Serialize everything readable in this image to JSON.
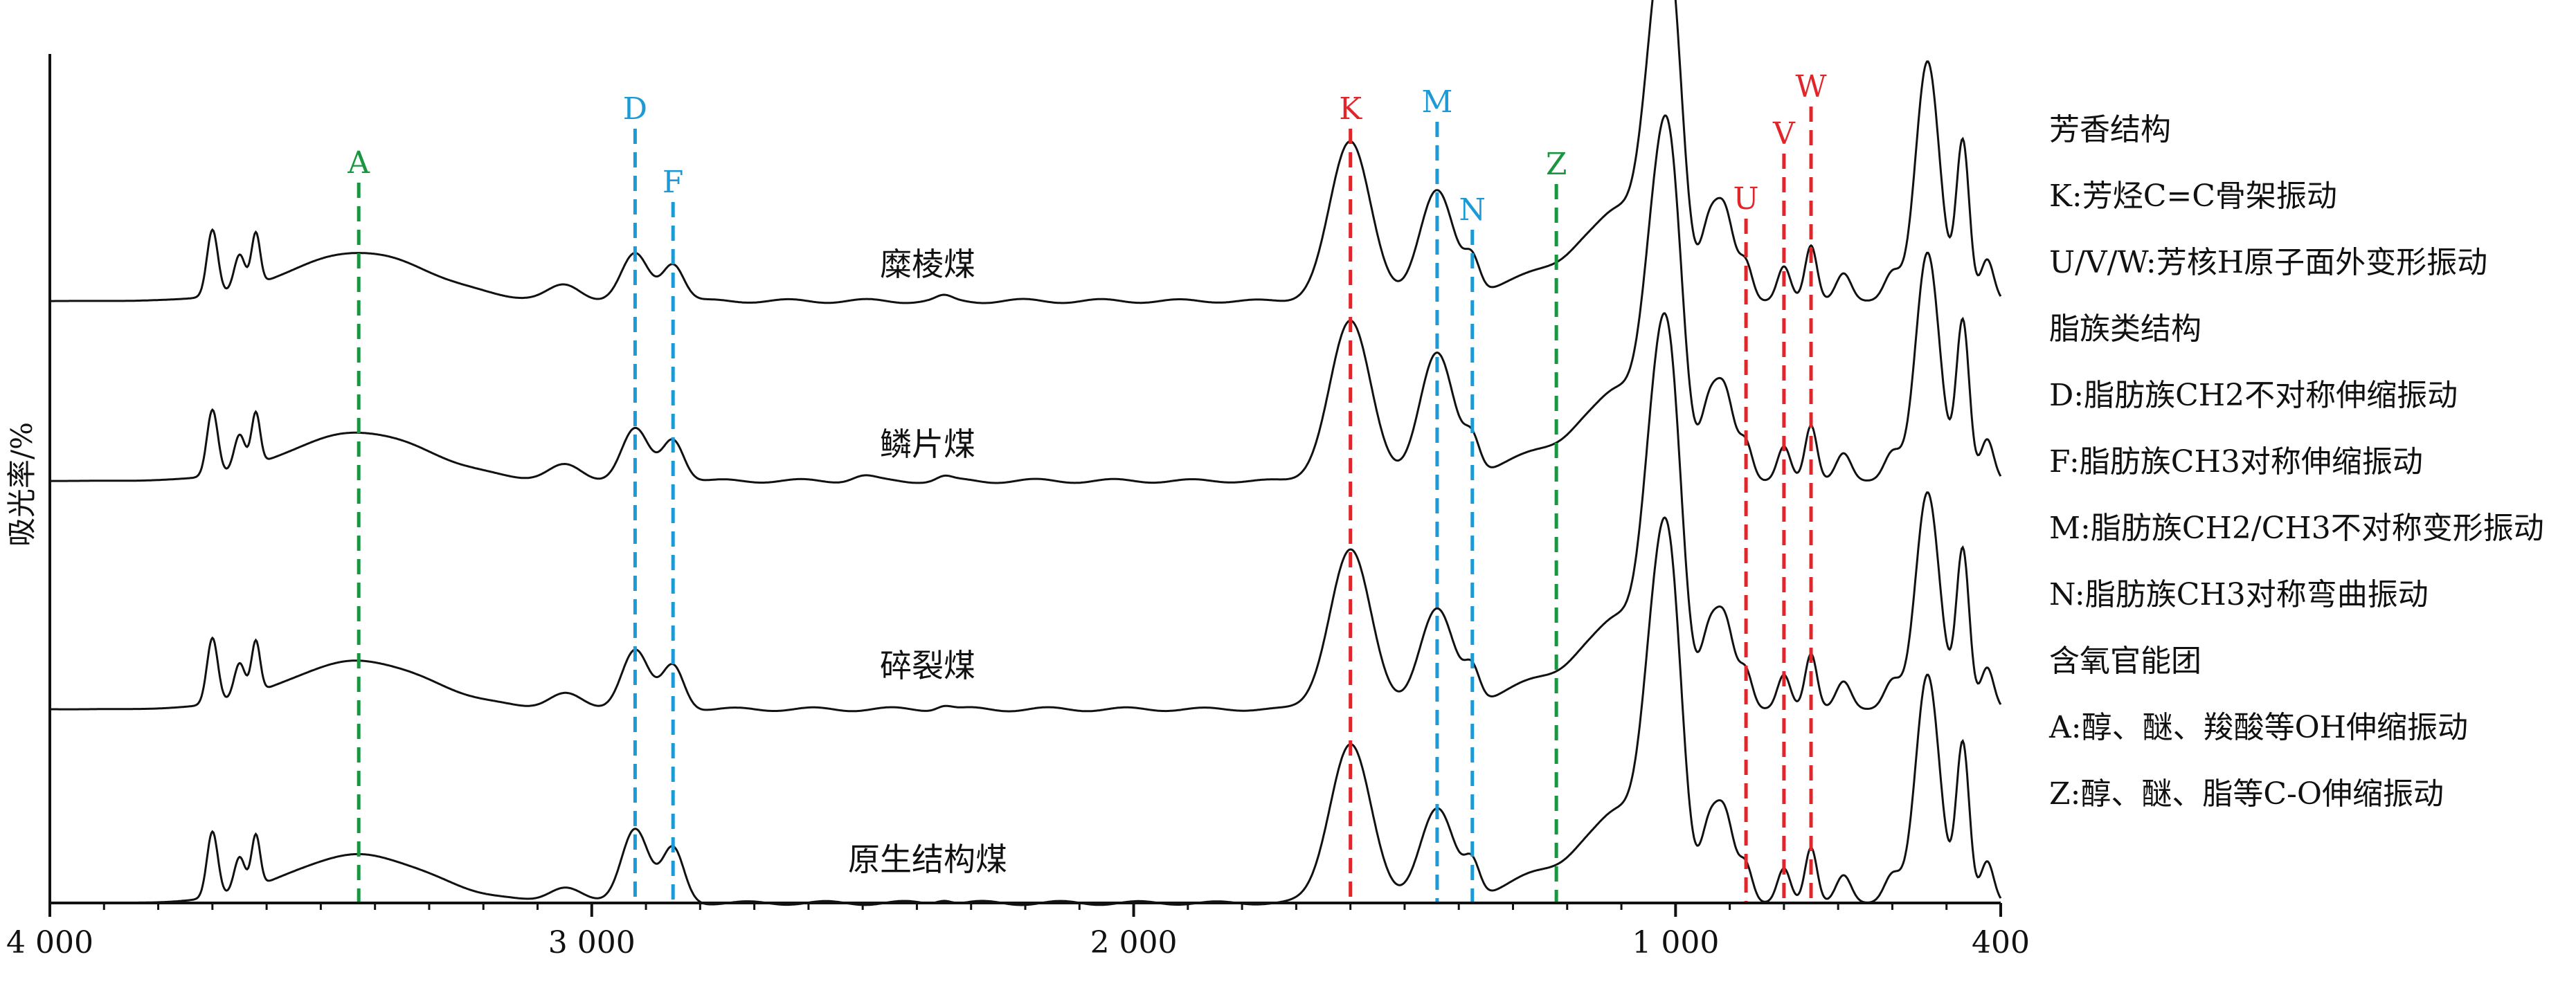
{
  "chart_data": {
    "type": "line",
    "title": "",
    "xlabel": "",
    "ylabel": "吸光率/%",
    "xlim": [
      4000,
      400
    ],
    "x_reversed": true,
    "x_ticks": [
      4000,
      3000,
      2000,
      1000,
      400
    ],
    "x_tick_labels": [
      "4 000",
      "3 000",
      "2 000",
      "1 000",
      "400"
    ],
    "grid": false,
    "series": [
      {
        "name": "糜棱煤"
      },
      {
        "name": "鳞片煤"
      },
      {
        "name": "碎裂煤"
      },
      {
        "name": "原生结构煤"
      }
    ],
    "reference_lines": [
      {
        "label": "A",
        "x": 3430,
        "color": "#1a9640",
        "group": "oxygen"
      },
      {
        "label": "D",
        "x": 2920,
        "color": "#1b9ad6",
        "group": "aliphatic"
      },
      {
        "label": "F",
        "x": 2850,
        "color": "#1b9ad6",
        "group": "aliphatic"
      },
      {
        "label": "K",
        "x": 1600,
        "color": "#e0262b",
        "group": "aromatic"
      },
      {
        "label": "M",
        "x": 1440,
        "color": "#1b9ad6",
        "group": "aliphatic"
      },
      {
        "label": "N",
        "x": 1375,
        "color": "#1b9ad6",
        "group": "aliphatic"
      },
      {
        "label": "Z",
        "x": 1220,
        "color": "#1a9640",
        "group": "oxygen"
      },
      {
        "label": "U",
        "x": 870,
        "color": "#e0262b",
        "group": "aromatic"
      },
      {
        "label": "V",
        "x": 800,
        "color": "#e0262b",
        "group": "aromatic"
      },
      {
        "label": "W",
        "x": 750,
        "color": "#e0262b",
        "group": "aromatic"
      }
    ]
  },
  "legend": {
    "groups": [
      {
        "title": "芳香结构",
        "items": [
          "K:芳烃C=C骨架振动",
          "U/V/W:芳核H原子面外变形振动"
        ]
      },
      {
        "title": "脂族类结构",
        "items": [
          "D:脂肪族CH2不对称伸缩振动",
          "F:脂肪族CH3对称伸缩振动",
          "M:脂肪族CH2/CH3不对称变形振动",
          "N:脂肪族CH3对称弯曲振动"
        ]
      },
      {
        "title": "含氧官能团",
        "items": [
          "A:醇、醚、羧酸等OH伸缩振动",
          "Z:醇、醚、脂等C-O伸缩振动"
        ]
      }
    ]
  }
}
